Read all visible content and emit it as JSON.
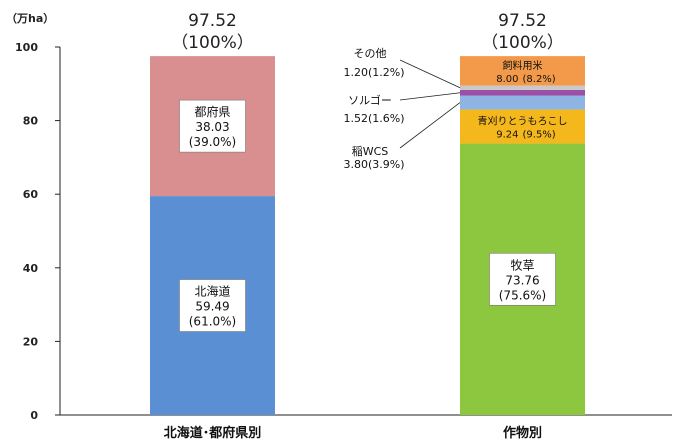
{
  "chart_data": {
    "type": "stacked-bar",
    "unit_label": "（万ha）",
    "ylim": [
      0,
      100
    ],
    "yticks": [
      "0",
      "20",
      "40",
      "60",
      "80",
      "100"
    ],
    "grid": false,
    "bars": [
      {
        "category": "北海道･都府県別",
        "total_value": "97.52",
        "total_pct": "（100%）",
        "segments": [
          {
            "name": "北海道",
            "value": 59.49,
            "value_text": "59.49",
            "pct_text": "(61.0%)",
            "color": "#5b8fd3"
          },
          {
            "name": "都府県",
            "value": 38.03,
            "value_text": "38.03",
            "pct_text": "(39.0%)",
            "color": "#d98f8f"
          }
        ]
      },
      {
        "category": "作物別",
        "total_value": "97.52",
        "total_pct": "（100%）",
        "segments": [
          {
            "name": "牧草",
            "value": 73.76,
            "value_text": "73.76",
            "pct_text": "(75.6%)",
            "color": "#8dc63f"
          },
          {
            "name": "青刈りとうもろこし",
            "value": 9.24,
            "value_text": "9.24",
            "pct_text": "(9.5%)",
            "color": "#f5b81c"
          },
          {
            "name": "稲WCS",
            "value": 3.8,
            "value_text": "3.80",
            "pct_text": "(3.9%)",
            "color": "#8db4e2"
          },
          {
            "name": "ソルゴー",
            "value": 1.52,
            "value_text": "1.52",
            "pct_text": "(1.6%)",
            "color": "#9b4fa6"
          },
          {
            "name": "その他",
            "value": 1.2,
            "value_text": "1.20",
            "pct_text": "(1.2%)",
            "color": "#c9c9c9"
          },
          {
            "name": "飼料用米",
            "value": 8.0,
            "value_text": "8.00",
            "pct_text": "(8.2%)",
            "color": "#f39a4a"
          }
        ]
      }
    ]
  }
}
